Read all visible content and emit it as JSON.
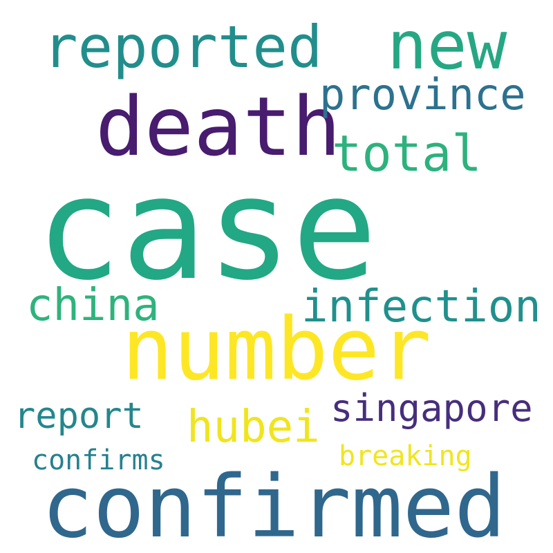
{
  "words": {
    "case": "case",
    "number": "number",
    "confirmed": "confirmed",
    "death": "death",
    "new": "new",
    "reported": "reported",
    "total": "total",
    "province": "province",
    "infection": "infection",
    "china": "china",
    "singapore": "singapore",
    "hubei": "hubei",
    "report": "report",
    "confirms": "confirms",
    "breaking": "breaking"
  },
  "colors": {
    "case": "#22a884",
    "number": "#fde725",
    "confirmed": "#30678d",
    "death": "#481c6e",
    "new": "#26a784",
    "reported": "#218e8c",
    "total": "#2db27d",
    "province": "#2c728e",
    "infection": "#20908c",
    "china": "#2eb37c",
    "singapore": "#472e7c",
    "hubei": "#f0e51d",
    "report": "#23878d",
    "confirms": "#26818e",
    "breaking": "#f1e51d"
  }
}
